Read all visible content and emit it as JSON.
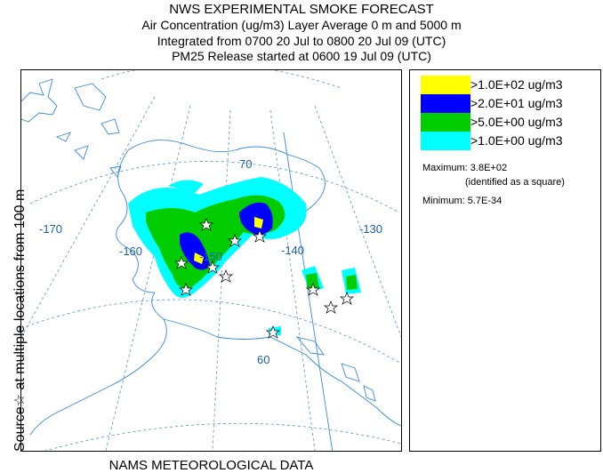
{
  "header": {
    "title": "NWS EXPERIMENTAL SMOKE FORECAST",
    "line2": "Air Concentration (ug/m3) Layer Average    0 m and  5000 m",
    "line3": "Integrated from 0700 20 Jul to 0800 20 Jul 09 (UTC)",
    "line4": "PM25 Release started at 0600 19 Jul 09 (UTC)"
  },
  "sidebar": {
    "text": "Source☆  at multiple locations   from   100 m"
  },
  "map": {
    "graticule_labels": [
      "-170",
      "-160",
      "-150",
      "-140",
      "-130",
      "70",
      "60"
    ],
    "colors": {
      "level1": "#ffff00",
      "level2": "#0000ff",
      "level3": "#00cc00",
      "level4": "#00ffff",
      "graticule": "#4f94cd",
      "coastline": "#3a8ad9"
    }
  },
  "footer": {
    "text": "NAMS METEOROLOGICAL DATA"
  },
  "legend": {
    "items": [
      {
        "label": ">1.0E+02 ug/m3",
        "color": "#ffff00"
      },
      {
        "label": ">2.0E+01 ug/m3",
        "color": "#0000ff"
      },
      {
        "label": ">5.0E+00 ug/m3",
        "color": "#00cc00"
      },
      {
        "label": ">1.0E+00 ug/m3",
        "color": "#00ffff"
      }
    ],
    "maximum": "Maximum: 3.8E+02",
    "maximum_note": "(identified as a square)",
    "minimum": "Minimum: 5.7E-34"
  }
}
